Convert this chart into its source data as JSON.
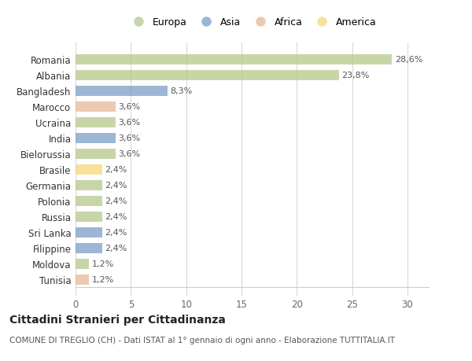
{
  "categories": [
    "Tunisia",
    "Moldova",
    "Filippine",
    "Sri Lanka",
    "Russia",
    "Polonia",
    "Germania",
    "Brasile",
    "Bielorussia",
    "India",
    "Ucraina",
    "Marocco",
    "Bangladesh",
    "Albania",
    "Romania"
  ],
  "values": [
    1.2,
    1.2,
    2.4,
    2.4,
    2.4,
    2.4,
    2.4,
    2.4,
    3.6,
    3.6,
    3.6,
    3.6,
    8.3,
    23.8,
    28.6
  ],
  "labels": [
    "1,2%",
    "1,2%",
    "2,4%",
    "2,4%",
    "2,4%",
    "2,4%",
    "2,4%",
    "2,4%",
    "3,6%",
    "3,6%",
    "3,6%",
    "3,6%",
    "8,3%",
    "23,8%",
    "28,6%"
  ],
  "continents": [
    "Africa",
    "Europa",
    "Asia",
    "Asia",
    "Europa",
    "Europa",
    "Europa",
    "America",
    "Europa",
    "Asia",
    "Europa",
    "Africa",
    "Asia",
    "Europa",
    "Europa"
  ],
  "continent_colors": {
    "Europa": "#b5c98a",
    "Asia": "#7b9fc7",
    "Africa": "#e8b89a",
    "America": "#f5d87a"
  },
  "legend_order": [
    "Europa",
    "Asia",
    "Africa",
    "America"
  ],
  "title": "Cittadini Stranieri per Cittadinanza",
  "subtitle": "COMUNE DI TREGLIO (CH) - Dati ISTAT al 1° gennaio di ogni anno - Elaborazione TUTTITALIA.IT",
  "xlim": [
    0,
    32
  ],
  "xticks": [
    0,
    5,
    10,
    15,
    20,
    25,
    30
  ],
  "background_color": "#ffffff",
  "bar_alpha": 0.75,
  "grid_color": "#d8d8d8"
}
